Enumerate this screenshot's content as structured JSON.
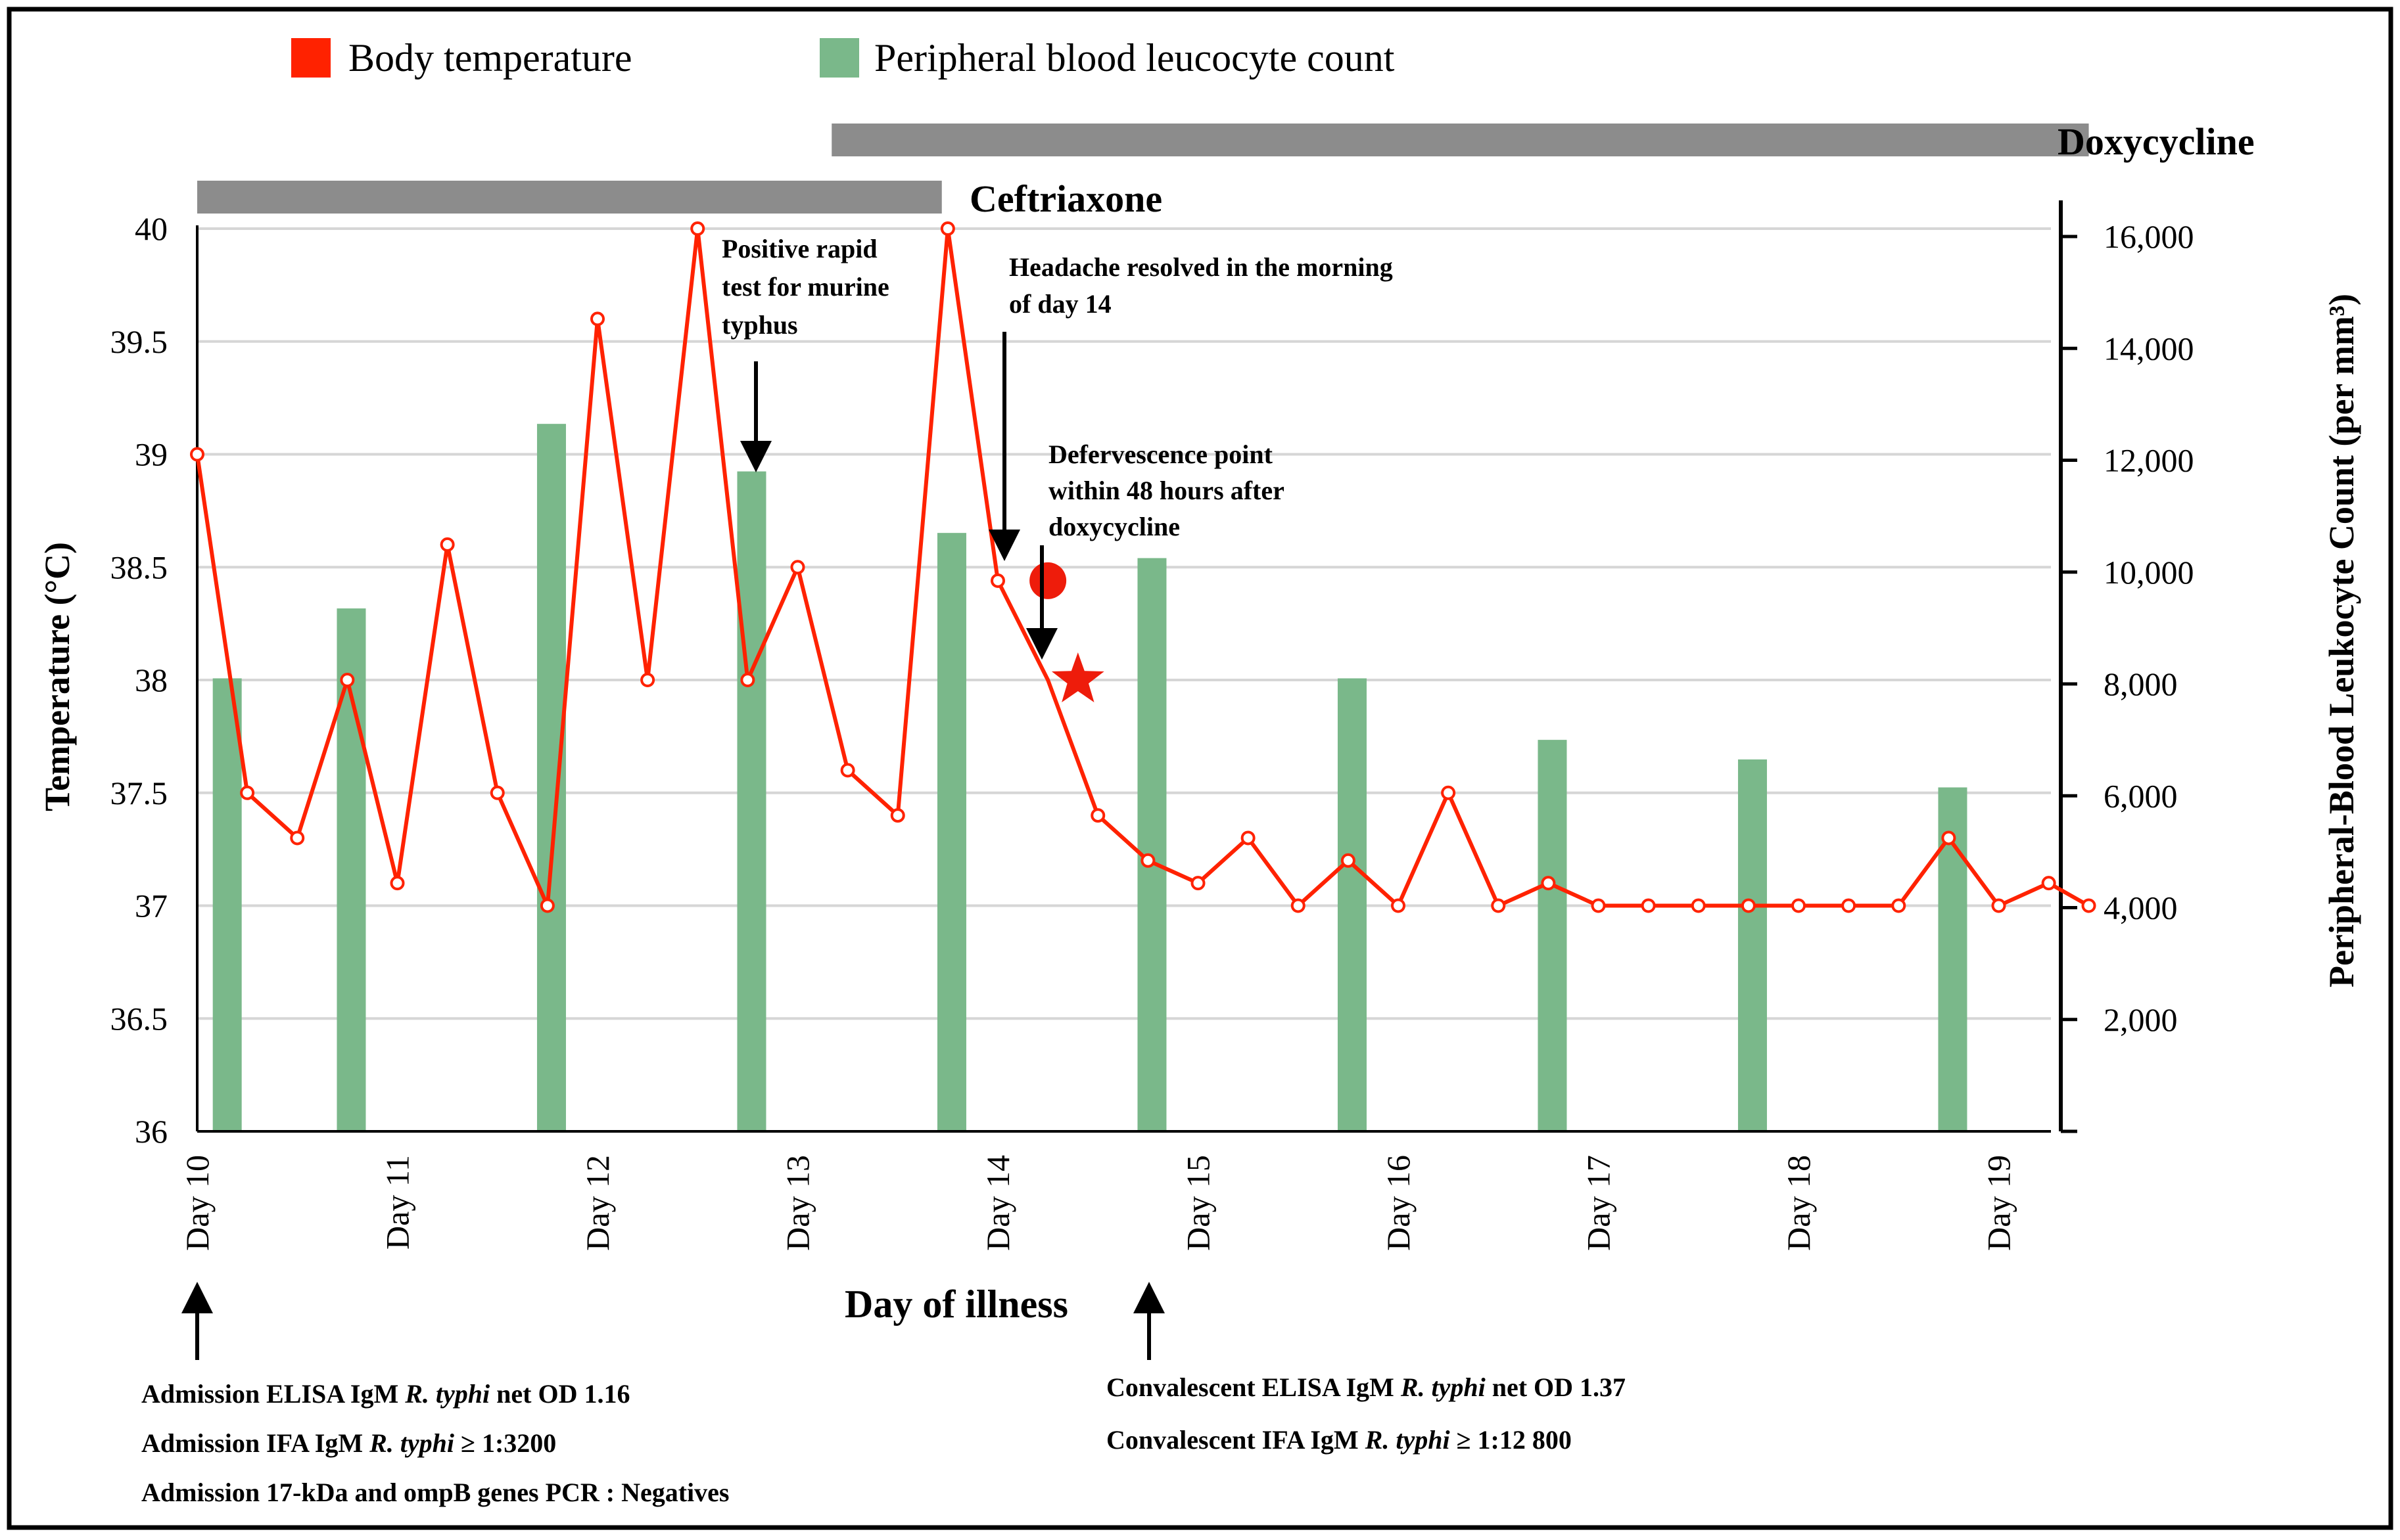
{
  "chart_data": {
    "type": "bar+line",
    "xlabel": "Day of illness",
    "ylabel_left": "Temperature (°C)",
    "ylabel_right": "Peripheral-Blood Leukocyte Count (per mm³)",
    "ylim_left": [
      36,
      40
    ],
    "ylim_right": [
      0,
      16000
    ],
    "x_range": [
      10,
      19.45
    ],
    "left_ticks": [
      "36",
      "36.5",
      "37",
      "37.5",
      "38",
      "38.5",
      "39",
      "39.5",
      "40"
    ],
    "left_tick_values": [
      36,
      36.5,
      37,
      37.5,
      38,
      38.5,
      39,
      39.5,
      40
    ],
    "right_ticks": [
      "2,000",
      "4,000",
      "6,000",
      "8,000",
      "10,000",
      "12,000",
      "14,000",
      "16,000"
    ],
    "right_tick_values": [
      2000,
      4000,
      6000,
      8000,
      10000,
      12000,
      14000,
      16000
    ],
    "categories": [
      "Day 10",
      "Day 11",
      "Day 12",
      "Day 13",
      "Day 14",
      "Day 15",
      "Day 16",
      "Day 17",
      "Day 18",
      "Day 19"
    ],
    "category_values": [
      10,
      11,
      12,
      13,
      14,
      15,
      16,
      17,
      18,
      19
    ],
    "legend": {
      "temperature": "Body temperature",
      "leukocytes": "Peripheral blood leucocyte count",
      "position": "top"
    },
    "series": [
      {
        "name": "Body temperature",
        "color": "#ff2200",
        "x": [
          10.0,
          10.25,
          10.5,
          10.75,
          11.0,
          11.25,
          11.5,
          11.75,
          12.0,
          12.25,
          12.5,
          12.75,
          13.0,
          13.25,
          13.5,
          13.75,
          14.0,
          14.25,
          14.5,
          14.75,
          15.0,
          15.25,
          15.5,
          15.75,
          16.0,
          16.25,
          16.5,
          16.75,
          17.0,
          17.25,
          17.5,
          17.75,
          18.0,
          18.25,
          18.5,
          18.75,
          19.0,
          19.25,
          19.45
        ],
        "y": [
          39.0,
          37.5,
          37.3,
          38.0,
          37.1,
          38.6,
          37.5,
          37.0,
          39.6,
          38.0,
          40.0,
          38.0,
          38.5,
          37.6,
          37.4,
          40.0,
          38.44,
          38.0,
          37.4,
          37.2,
          37.1,
          37.3,
          37.0,
          37.2,
          37.0,
          37.5,
          37.0,
          37.1,
          37.0,
          37.0,
          37.0,
          37.0,
          37.0,
          37.0,
          37.0,
          37.3,
          37.0,
          37.1,
          37.0
        ]
      },
      {
        "name": "Peripheral blood leucocyte count",
        "color": "#7ab88a",
        "x": [
          10.15,
          10.77,
          11.77,
          12.77,
          13.77,
          14.77,
          15.77,
          16.77,
          17.77,
          18.77
        ],
        "y": [
          8100,
          9350,
          12650,
          11800,
          10700,
          10250,
          8100,
          7000,
          6650,
          6150
        ]
      }
    ],
    "markers": {
      "headache_resolved": {
        "x": 14.25,
        "y": 38.44
      },
      "defervescence": {
        "x": 14.4,
        "y": 38.0
      }
    },
    "treatments": [
      {
        "name": "Ceftriaxone",
        "start": 10.0,
        "end": 13.72
      },
      {
        "name": "Doxycycline",
        "start": 13.17,
        "end": 19.45
      }
    ],
    "annotations": {
      "rapid_test": [
        "Positive rapid",
        "test for murine",
        "typhus"
      ],
      "headache": [
        "Headache resolved in the morning",
        "of day 14"
      ],
      "defervescence": [
        "Defervescence point",
        "within 48 hours after",
        "doxycycline"
      ]
    },
    "admission_notes": {
      "line1": [
        "Admission ELISA IgM ",
        "R. typhi",
        " net OD 1.16"
      ],
      "line2": [
        "Admission IFA IgM ",
        "R. typhi",
        " ≥ 1:3200"
      ],
      "line3": "Admission 17-kDa and ompB genes PCR : Negatives"
    },
    "convalescent_notes": {
      "line1": [
        "Convalescent ELISA IgM ",
        "R. typhi",
        " net OD 1.37"
      ],
      "line2": [
        "Convalescent IFA IgM ",
        "R. typhi",
        " ≥ 1:12 800"
      ]
    }
  }
}
